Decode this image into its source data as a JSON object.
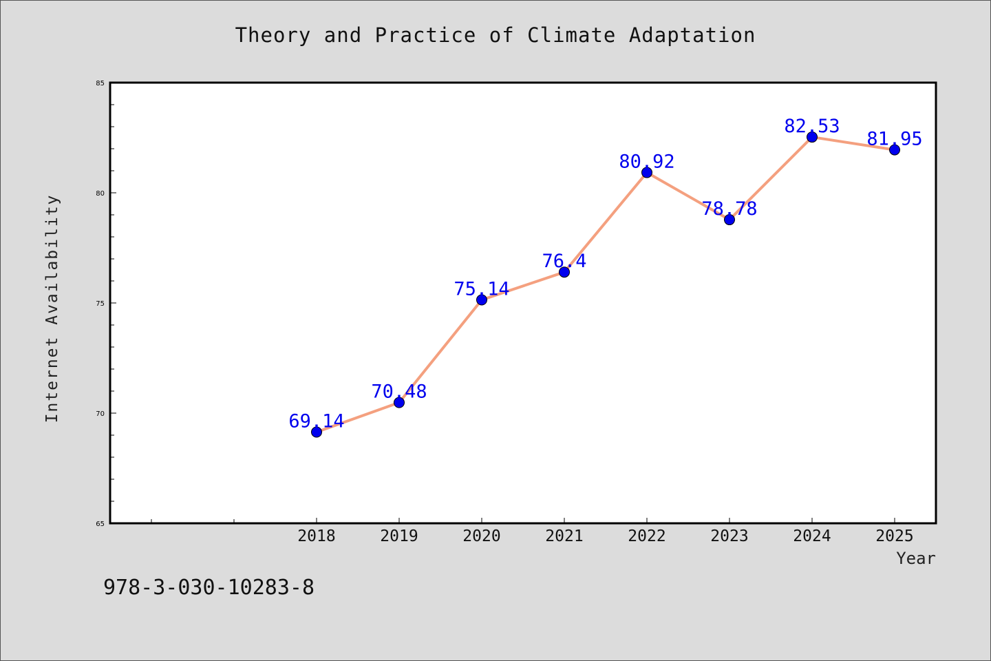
{
  "chart_data": {
    "type": "line",
    "title": "Theory and Practice of Climate Adaptation",
    "xlabel": "Year",
    "ylabel": "Internet Availability",
    "categories": [
      "2018",
      "2019",
      "2020",
      "2021",
      "2022",
      "2023",
      "2024",
      "2025"
    ],
    "series": [
      {
        "values": [
          69.14,
          70.48,
          75.14,
          76.4,
          80.92,
          78.78,
          82.53,
          81.95
        ]
      }
    ],
    "data_labels": [
      "69.14",
      "70.48",
      "75.14",
      "76.4",
      "80.92",
      "78.78",
      "82.53",
      "81.95"
    ],
    "ylim": [
      65,
      85
    ],
    "y_ticks": [
      "65",
      "70",
      "75",
      "80",
      "85"
    ],
    "grid": false,
    "colors": {
      "line": "#f4a07f",
      "marker": "#0000ee",
      "label": "#0000ee"
    }
  },
  "footer": {
    "isbn": "978-3-030-10283-8"
  }
}
